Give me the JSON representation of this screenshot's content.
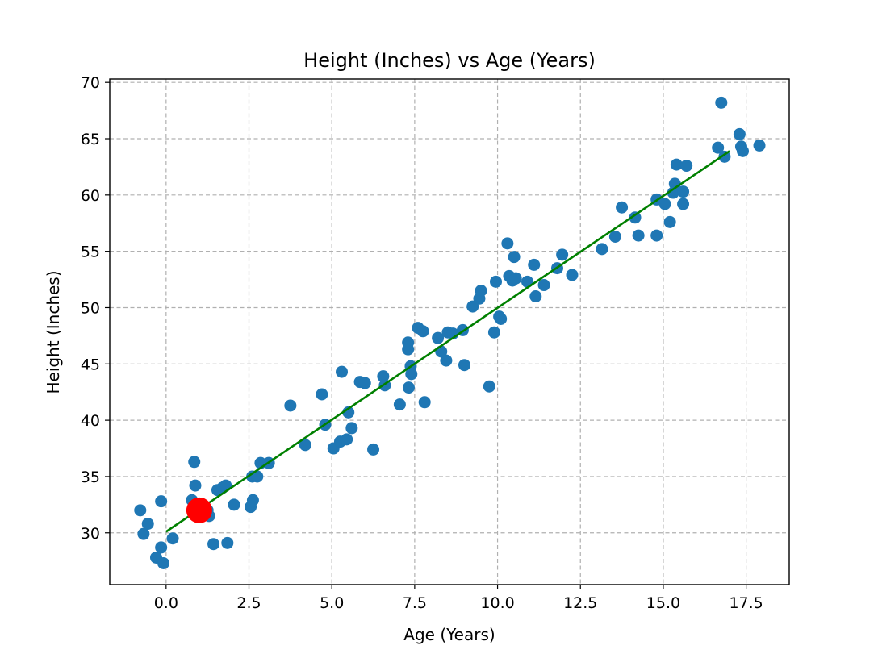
{
  "chart_data": {
    "type": "scatter",
    "title": "Height (Inches) vs Age (Years)",
    "xlabel": "Age (Years)",
    "ylabel": "Height (Inches)",
    "xlim": [
      -1.7,
      18.8
    ],
    "ylim": [
      25.4,
      70.3
    ],
    "xticks": [
      0.0,
      2.5,
      5.0,
      7.5,
      10.0,
      12.5,
      15.0,
      17.5
    ],
    "xtick_labels": [
      "0.0",
      "2.5",
      "5.0",
      "7.5",
      "10.0",
      "12.5",
      "15.0",
      "17.5"
    ],
    "yticks": [
      30,
      35,
      40,
      45,
      50,
      55,
      60,
      65,
      70
    ],
    "ytick_labels": [
      "30",
      "35",
      "40",
      "45",
      "50",
      "55",
      "60",
      "65",
      "70"
    ],
    "grid": true,
    "colors": {
      "points": "#1f77b4",
      "fit_line": "#008000",
      "highlight": "#ff0000"
    },
    "points": {
      "x": [
        -0.78,
        -0.68,
        -0.55,
        -0.3,
        -0.15,
        -0.15,
        -0.08,
        0.2,
        0.78,
        0.85,
        0.88,
        1.25,
        1.3,
        1.43,
        1.55,
        1.7,
        1.8,
        1.85,
        2.05,
        2.55,
        2.6,
        2.62,
        2.75,
        2.85,
        3.1,
        3.75,
        4.2,
        4.7,
        4.8,
        5.05,
        5.25,
        5.3,
        5.45,
        5.5,
        5.6,
        5.85,
        6.0,
        6.25,
        6.55,
        6.6,
        7.05,
        7.3,
        7.3,
        7.32,
        7.38,
        7.4,
        7.6,
        7.75,
        7.8,
        8.2,
        8.3,
        8.45,
        8.5,
        8.65,
        8.95,
        9.0,
        9.25,
        9.45,
        9.5,
        9.75,
        9.9,
        9.95,
        10.05,
        10.1,
        10.3,
        10.35,
        10.45,
        10.5,
        10.55,
        10.9,
        11.1,
        11.15,
        11.4,
        11.8,
        11.95,
        12.25,
        13.15,
        13.55,
        13.75,
        14.15,
        14.25,
        14.8,
        14.8,
        15.05,
        15.2,
        15.3,
        15.35,
        15.4,
        15.6,
        15.6,
        15.7,
        16.65,
        16.75,
        16.85,
        17.3,
        17.35,
        17.4,
        17.9
      ],
      "y": [
        32.0,
        29.9,
        30.8,
        27.8,
        28.7,
        32.8,
        27.3,
        29.5,
        32.9,
        36.3,
        34.2,
        32.0,
        31.5,
        29.0,
        33.8,
        34.0,
        34.2,
        29.1,
        32.5,
        32.3,
        35.0,
        32.9,
        35.0,
        36.2,
        36.2,
        41.3,
        37.8,
        42.3,
        39.6,
        37.5,
        38.1,
        44.3,
        38.3,
        40.7,
        39.3,
        43.4,
        43.3,
        37.4,
        43.9,
        43.1,
        41.4,
        46.3,
        46.9,
        42.9,
        44.8,
        44.1,
        48.2,
        47.9,
        41.6,
        47.3,
        46.1,
        45.3,
        47.8,
        47.7,
        48.0,
        44.9,
        50.1,
        50.8,
        51.5,
        43.0,
        47.8,
        52.3,
        49.2,
        49.0,
        55.7,
        52.8,
        52.4,
        54.5,
        52.6,
        52.3,
        53.8,
        51.0,
        52.0,
        53.5,
        54.7,
        52.9,
        55.2,
        56.3,
        58.9,
        58.0,
        56.4,
        56.4,
        59.6,
        59.2,
        57.6,
        60.2,
        61.0,
        62.7,
        60.3,
        59.2,
        62.6,
        64.2,
        68.2,
        63.4,
        65.4,
        64.3,
        63.9,
        64.4
      ]
    },
    "fit_line": {
      "x": [
        0.0,
        17.0
      ],
      "y": [
        30.1,
        63.9
      ]
    },
    "highlight_point": {
      "x": 1.0,
      "y": 32.0
    }
  }
}
